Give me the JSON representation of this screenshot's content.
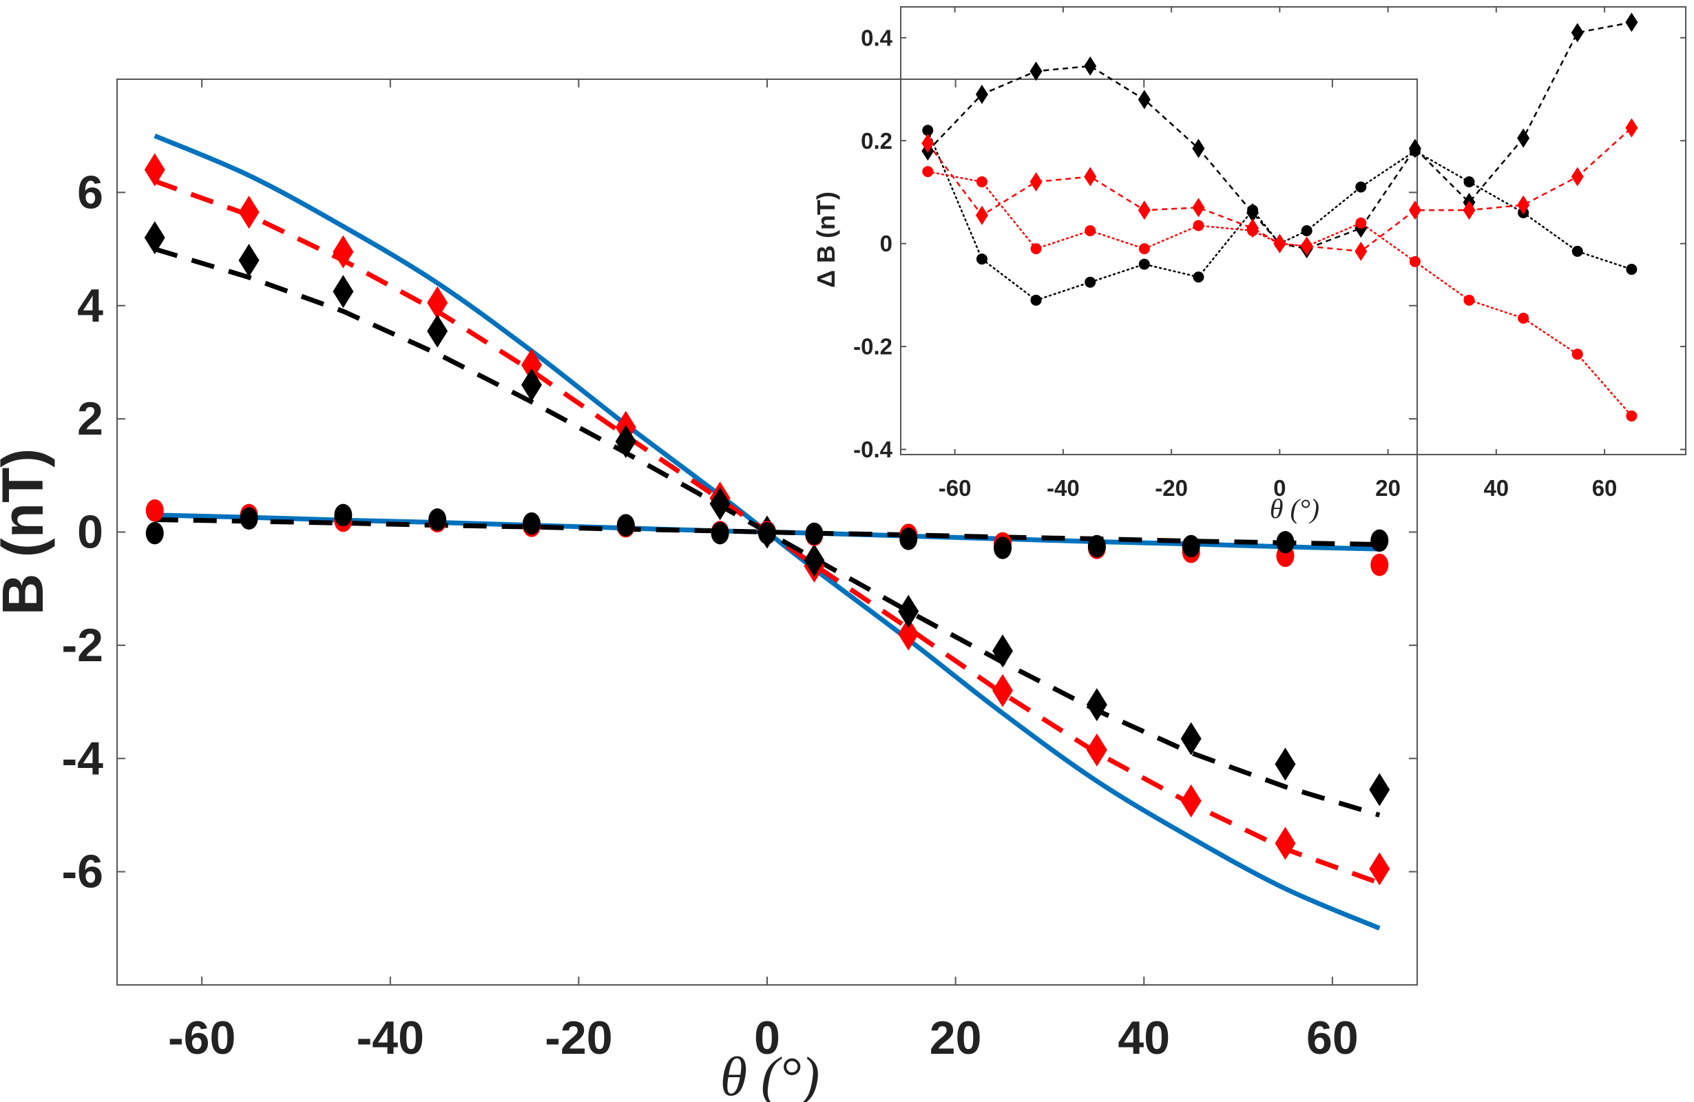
{
  "chart_data": [
    {
      "id": "main",
      "type": "line",
      "xlabel": "θ (°)",
      "ylabel": "B (nT)",
      "xlim": [
        -69,
        69
      ],
      "ylim": [
        -8,
        8
      ],
      "xticks": [
        -60,
        -40,
        -20,
        0,
        20,
        40,
        60
      ],
      "xtick_labels": [
        "-60",
        "-40",
        "-20",
        "0",
        "20",
        "40",
        "60"
      ],
      "yticks": [
        -6,
        -4,
        -2,
        0,
        2,
        4,
        6
      ],
      "ytick_labels": [
        "-6",
        "-4",
        "-2",
        "0",
        "2",
        "4",
        "6"
      ],
      "x": [
        -65,
        -55,
        -45,
        -35,
        -25,
        -15,
        -5,
        0,
        5,
        15,
        25,
        35,
        45,
        55,
        65
      ],
      "series": [
        {
          "name": "model-large",
          "style": "solid",
          "color": "#0072BD",
          "values": [
            7.0,
            6.3,
            5.4,
            4.4,
            3.2,
            1.9,
            0.65,
            0,
            -0.65,
            -1.9,
            -3.2,
            -4.4,
            -5.4,
            -6.3,
            -7.0
          ]
        },
        {
          "name": "fit-large-red",
          "style": "dashed",
          "color": "#ff0000",
          "values": [
            6.2,
            5.6,
            4.8,
            3.9,
            2.85,
            1.7,
            0.58,
            0,
            -0.58,
            -1.7,
            -2.85,
            -3.9,
            -4.8,
            -5.6,
            -6.2
          ]
        },
        {
          "name": "fit-large-black",
          "style": "dashed",
          "color": "#000000",
          "values": [
            5.0,
            4.5,
            3.9,
            3.15,
            2.3,
            1.4,
            0.47,
            0,
            -0.47,
            -1.4,
            -2.3,
            -3.15,
            -3.9,
            -4.5,
            -5.0
          ]
        },
        {
          "name": "data-large-red",
          "style": "diamond",
          "color": "#ff0000",
          "values": [
            6.4,
            5.65,
            4.95,
            4.05,
            2.95,
            1.85,
            0.6,
            0,
            -0.6,
            -1.8,
            -2.8,
            -3.85,
            -4.75,
            -5.5,
            -5.95
          ]
        },
        {
          "name": "data-large-black",
          "style": "diamond",
          "color": "#000000",
          "values": [
            5.2,
            4.8,
            4.25,
            3.55,
            2.6,
            1.6,
            0.5,
            0,
            -0.5,
            -1.4,
            -2.1,
            -3.05,
            -3.65,
            -4.1,
            -4.55
          ]
        },
        {
          "name": "model-small",
          "style": "solid",
          "color": "#0072BD",
          "values": [
            0.3,
            0.26,
            0.21,
            0.17,
            0.12,
            0.07,
            0.02,
            0,
            -0.02,
            -0.07,
            -0.12,
            -0.17,
            -0.21,
            -0.26,
            -0.3
          ]
        },
        {
          "name": "fit-small-black",
          "style": "dashed",
          "color": "#000000",
          "values": [
            0.22,
            0.19,
            0.16,
            0.12,
            0.09,
            0.05,
            0.02,
            0,
            -0.02,
            -0.05,
            -0.09,
            -0.12,
            -0.16,
            -0.19,
            -0.22
          ]
        },
        {
          "name": "data-small-red",
          "style": "circle",
          "color": "#ff0000",
          "values": [
            0.38,
            0.3,
            0.2,
            0.19,
            0.11,
            0.1,
            0.0,
            0,
            -0.05,
            -0.05,
            -0.2,
            -0.28,
            -0.35,
            -0.42,
            -0.58
          ]
        },
        {
          "name": "data-small-black",
          "style": "circle",
          "color": "#000000",
          "values": [
            -0.02,
            0.24,
            0.3,
            0.22,
            0.15,
            0.12,
            -0.02,
            -0.02,
            -0.03,
            -0.12,
            -0.28,
            -0.25,
            -0.25,
            -0.18,
            -0.15
          ]
        }
      ]
    },
    {
      "id": "inset",
      "type": "line",
      "xlabel": "θ (°)",
      "ylabel": "Δ B (nT)",
      "xlim": [
        -70,
        75
      ],
      "ylim": [
        -0.41,
        0.46
      ],
      "xticks": [
        -60,
        -40,
        -20,
        0,
        20,
        40,
        60
      ],
      "xtick_labels": [
        "-60",
        "-40",
        "-20",
        "0",
        "20",
        "40",
        "60"
      ],
      "yticks": [
        -0.4,
        -0.2,
        0,
        0.2,
        0.4
      ],
      "ytick_labels": [
        "-0.4",
        "-0.2",
        "0",
        "0.2",
        "0.4"
      ],
      "x": [
        -65,
        -55,
        -45,
        -35,
        -25,
        -15,
        -5,
        0,
        5,
        15,
        25,
        35,
        45,
        55,
        65
      ],
      "series": [
        {
          "name": "black-diamond",
          "marker": "diamond",
          "line": "dashed",
          "color": "#000000",
          "values": [
            0.18,
            0.29,
            0.335,
            0.345,
            0.28,
            0.185,
            0.06,
            0,
            -0.01,
            0.03,
            0.185,
            0.08,
            0.205,
            0.41,
            0.43
          ]
        },
        {
          "name": "black-circle",
          "marker": "circle",
          "line": "dotted",
          "color": "#000000",
          "values": [
            0.22,
            -0.03,
            -0.11,
            -0.075,
            -0.04,
            -0.065,
            0.065,
            0,
            0.025,
            0.11,
            0.18,
            0.12,
            0.06,
            -0.015,
            -0.05
          ]
        },
        {
          "name": "red-diamond",
          "marker": "diamond",
          "line": "dashed",
          "color": "#ff0000",
          "values": [
            0.195,
            0.055,
            0.12,
            0.13,
            0.065,
            0.07,
            0.03,
            0,
            -0.005,
            -0.015,
            0.065,
            0.065,
            0.075,
            0.13,
            0.225
          ]
        },
        {
          "name": "red-circle",
          "marker": "circle",
          "line": "dotted",
          "color": "#ff0000",
          "values": [
            0.14,
            0.12,
            -0.01,
            0.025,
            -0.01,
            0.035,
            0.025,
            0,
            -0.005,
            0.04,
            -0.035,
            -0.11,
            -0.145,
            -0.215,
            -0.335
          ]
        }
      ]
    }
  ]
}
